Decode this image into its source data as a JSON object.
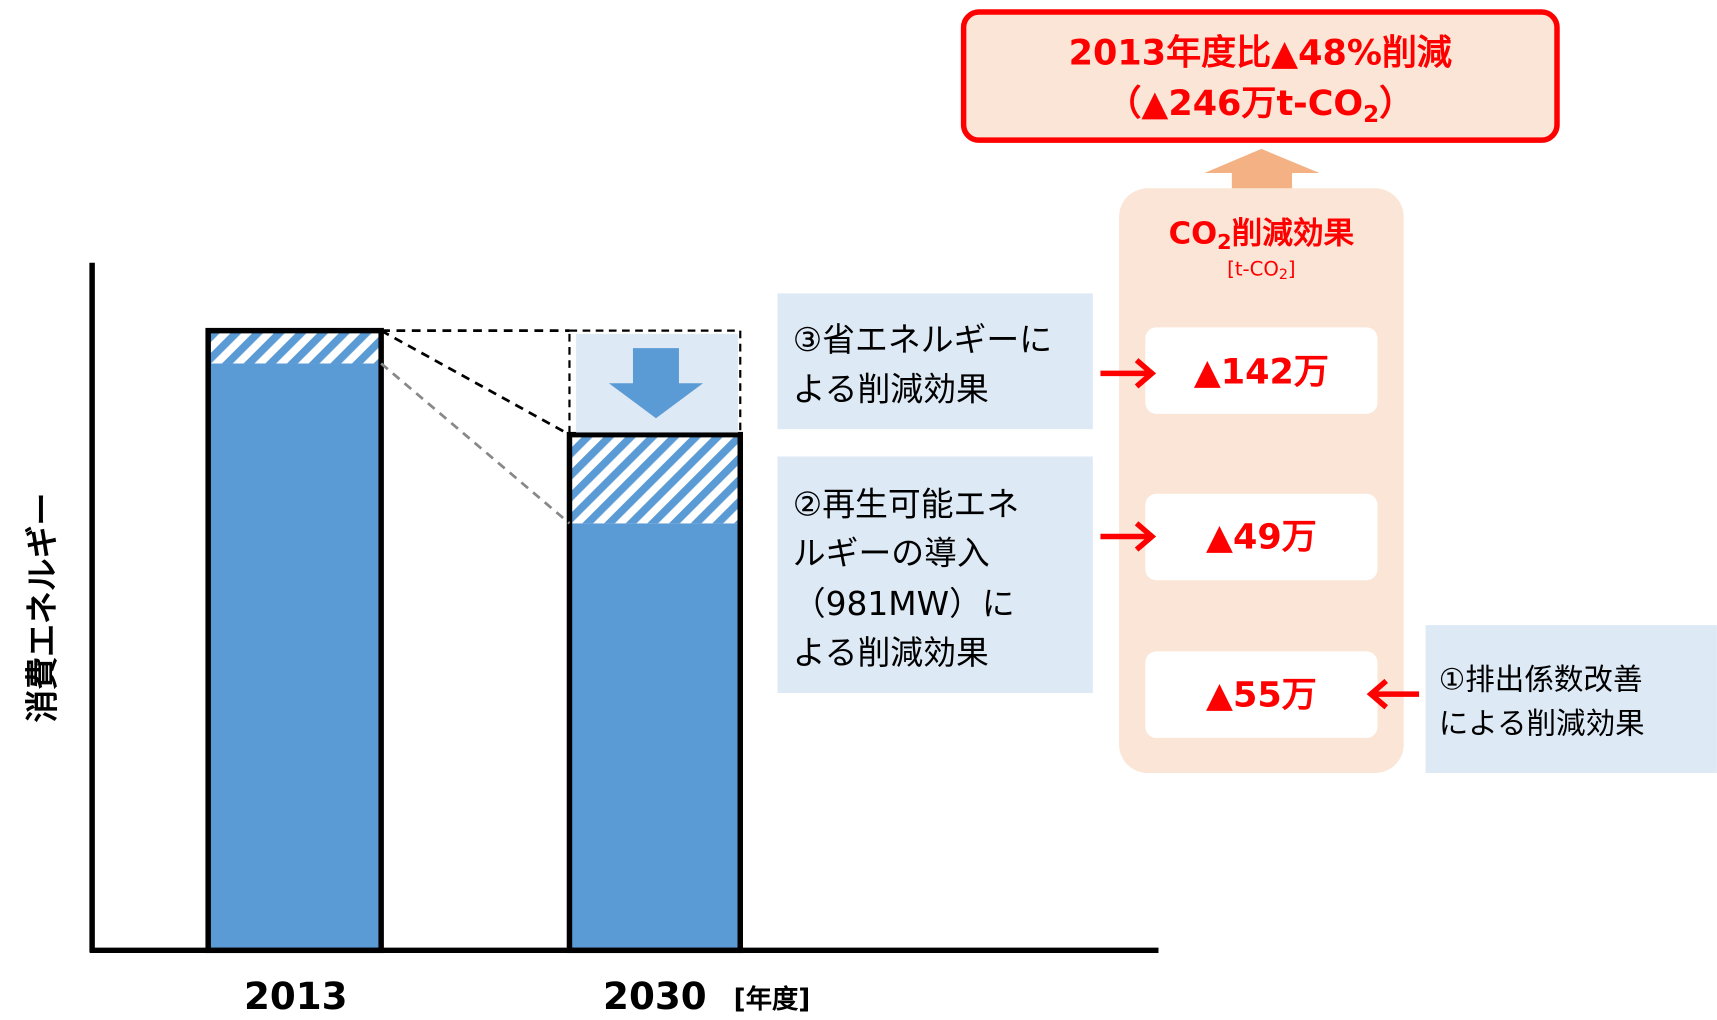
{
  "axis": {
    "y_label": "消費エネルギー",
    "x_labels": [
      "2013",
      "2030"
    ],
    "x_unit": "[年度]"
  },
  "callouts": {
    "energy_saving": [
      "③省エネルギーに",
      "よる削減効果"
    ],
    "renewable": [
      "②再生可能エネ",
      "ルギーの導入",
      "（981MW）に",
      "よる削減効果"
    ],
    "emission_factor": [
      "①排出係数改善",
      "による削減効果"
    ]
  },
  "panel": {
    "title": [
      "CO",
      "2",
      "削減効果"
    ],
    "unit": [
      "[t-CO",
      "2",
      "]"
    ],
    "values": [
      "▲142万",
      "▲49万",
      "▲55万"
    ]
  },
  "summary": {
    "line1": "2013年度比▲48%削減",
    "line2": [
      "（▲246万t-CO",
      "2",
      "）"
    ]
  }
}
